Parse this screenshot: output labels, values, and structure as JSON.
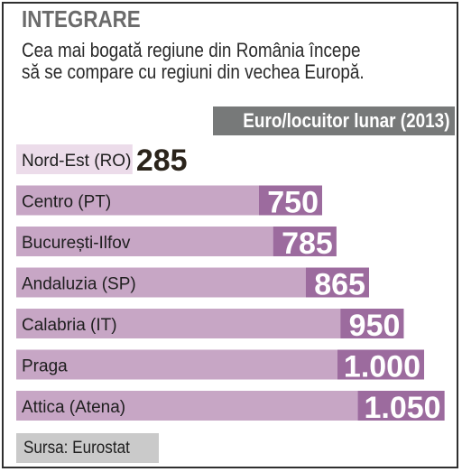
{
  "headline": "INTEGRARE",
  "subtitle_lines": [
    "Cea mai bogată regiune din România începe",
    "să se compare cu regiuni din vechea Europă."
  ],
  "units_label": "Euro/locuitor lunar (2013)",
  "source": "Sursa: Eurostat",
  "colors": {
    "bar_light": "#c7a6c5",
    "value_box": "#9c6b9e",
    "units_bar": "#777979",
    "source_box": "#cacaca",
    "first_row_bg": "#ecdcea"
  },
  "chart_data": {
    "type": "bar",
    "orientation": "horizontal",
    "title": "Euro/locuitor lunar (2013)",
    "categories": [
      "Nord-Est (RO)",
      "Centro (PT)",
      "București-Ilfov",
      "Andaluzia (SP)",
      "Calabria (IT)",
      "Praga",
      "Attica (Atena)"
    ],
    "values": [
      285,
      750,
      785,
      865,
      950,
      1000,
      1050
    ],
    "value_labels": [
      "285",
      "750",
      "785",
      "865",
      "950",
      "1.000",
      "1.050"
    ],
    "xlim": [
      0,
      1050
    ]
  }
}
